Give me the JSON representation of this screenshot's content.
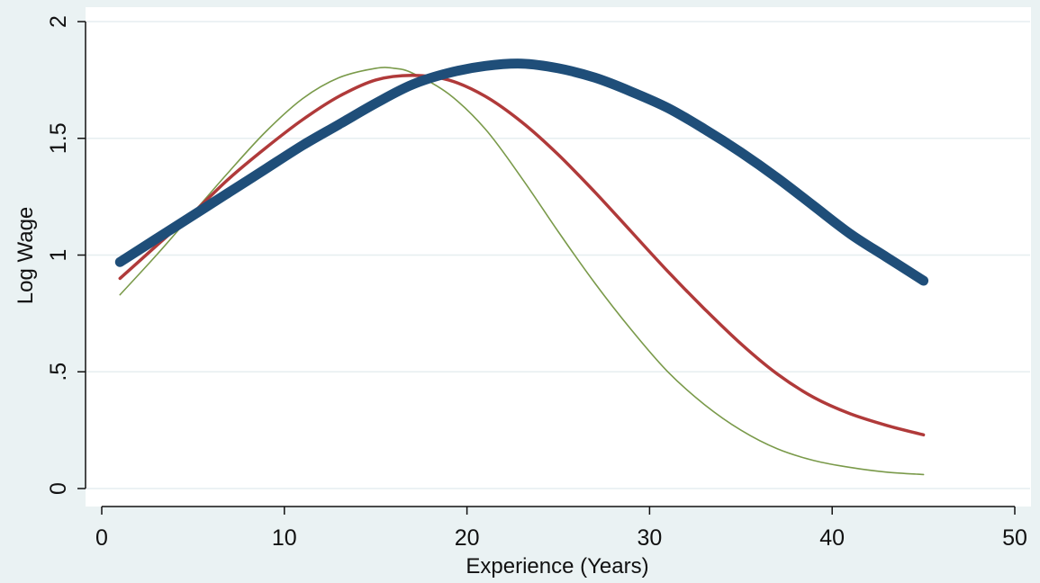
{
  "chart_data": {
    "type": "line",
    "title": "",
    "xlabel": "Experience (Years)",
    "ylabel": "Log Wage",
    "xlim": [
      0,
      50
    ],
    "ylim": [
      0,
      2
    ],
    "x_ticks": [
      0,
      10,
      20,
      30,
      40,
      50
    ],
    "x_tick_labels": [
      "0",
      "10",
      "20",
      "30",
      "40",
      "50"
    ],
    "y_ticks": [
      0,
      0.5,
      1,
      1.5,
      2
    ],
    "y_tick_labels": [
      "0",
      ".5",
      "1",
      "1.5",
      "2"
    ],
    "grid": "horizontal",
    "legend": "none",
    "background": "#eaf2f3",
    "plot_background": "#ffffff",
    "series": [
      {
        "color": "#1f4e79",
        "line_style": "thick",
        "x": [
          1,
          3,
          5,
          7,
          9,
          11,
          13,
          15,
          17,
          19,
          21,
          23,
          25,
          27,
          29,
          31,
          33,
          35,
          37,
          39,
          41,
          43,
          45
        ],
        "y": [
          0.97,
          1.07,
          1.17,
          1.27,
          1.37,
          1.47,
          1.56,
          1.65,
          1.73,
          1.78,
          1.81,
          1.82,
          1.8,
          1.76,
          1.7,
          1.63,
          1.54,
          1.44,
          1.33,
          1.21,
          1.09,
          0.99,
          0.89
        ]
      },
      {
        "color": "#b03a3a",
        "line_style": "medium",
        "x": [
          1,
          3,
          5,
          7,
          9,
          11,
          13,
          15,
          17,
          19,
          21,
          23,
          25,
          27,
          29,
          31,
          33,
          35,
          37,
          39,
          41,
          43,
          45
        ],
        "y": [
          0.9,
          1.04,
          1.18,
          1.33,
          1.46,
          1.58,
          1.68,
          1.75,
          1.77,
          1.75,
          1.68,
          1.57,
          1.43,
          1.27,
          1.1,
          0.93,
          0.77,
          0.62,
          0.49,
          0.39,
          0.32,
          0.27,
          0.23
        ]
      },
      {
        "color": "#7a9a4a",
        "line_style": "thin",
        "x": [
          1,
          3,
          5,
          7,
          9,
          11,
          13,
          15,
          16,
          17,
          19,
          21,
          23,
          25,
          27,
          29,
          31,
          33,
          35,
          37,
          39,
          41,
          43,
          45
        ],
        "y": [
          0.83,
          1.0,
          1.18,
          1.36,
          1.53,
          1.67,
          1.76,
          1.8,
          1.8,
          1.78,
          1.69,
          1.54,
          1.33,
          1.1,
          0.88,
          0.68,
          0.5,
          0.36,
          0.25,
          0.17,
          0.12,
          0.09,
          0.07,
          0.06
        ]
      }
    ]
  }
}
